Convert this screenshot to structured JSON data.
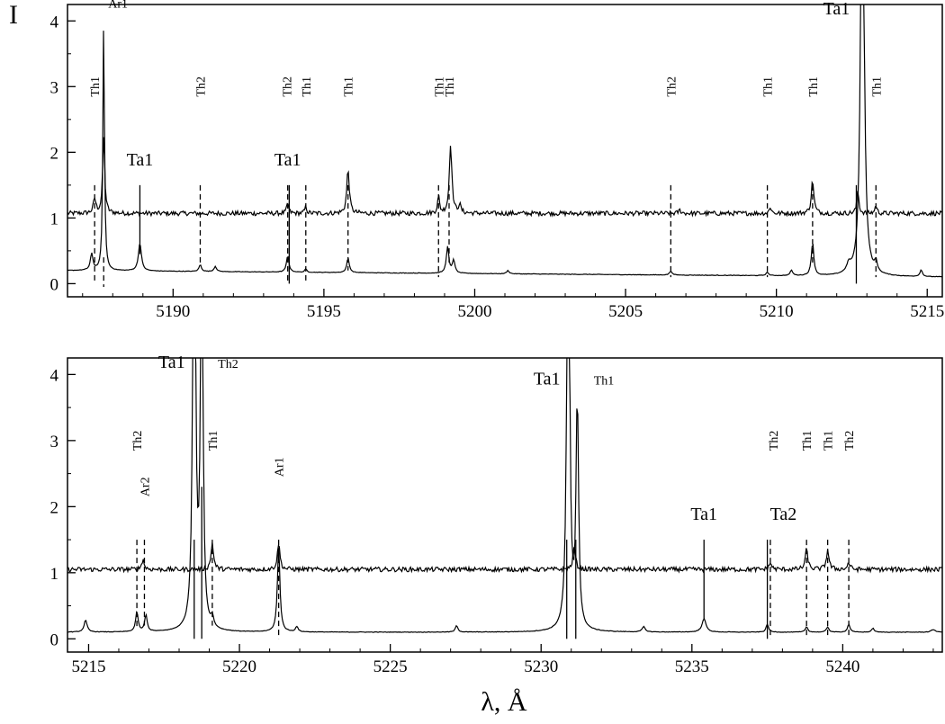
{
  "chart_data": {
    "type": "line",
    "axis_titles": {
      "y": "I",
      "x": "λ, Å"
    },
    "panels": [
      {
        "xlim": [
          5186.5,
          5215.5
        ],
        "ylim": [
          -0.2,
          4.25
        ],
        "xticks": [
          5190,
          5195,
          5200,
          5205,
          5210,
          5215
        ],
        "yticks": [
          0,
          1,
          2,
          3,
          4
        ],
        "series": [
          {
            "baseline": 1.07,
            "noise": 0.035,
            "peaks": [
              [
                5187.4,
                0.22,
                0.05
              ],
              [
                5187.7,
                1.2,
                0.04
              ],
              [
                5193.8,
                0.15,
                0.04
              ],
              [
                5194.4,
                0.1,
                0.04
              ],
              [
                5195.8,
                0.67,
                0.05
              ],
              [
                5198.8,
                0.25,
                0.04
              ],
              [
                5199.2,
                1.06,
                0.05
              ],
              [
                5199.5,
                0.12,
                0.05
              ],
              [
                5206.8,
                0.05,
                0.05
              ],
              [
                5209.8,
                0.1,
                0.04
              ],
              [
                5211.2,
                0.5,
                0.05
              ],
              [
                5212.7,
                0.35,
                0.04
              ],
              [
                5213.3,
                0.12,
                0.04
              ]
            ]
          },
          {
            "baseline": 0.2,
            "trend": -0.1,
            "noise": 0.004,
            "peaks": [
              [
                5187.3,
                0.25,
                0.05
              ],
              [
                5187.7,
                3.9,
                0.03
              ],
              [
                5188.9,
                0.42,
                0.06
              ],
              [
                5190.9,
                0.1,
                0.05
              ],
              [
                5191.4,
                0.08,
                0.05
              ],
              [
                5193.8,
                0.25,
                0.05
              ],
              [
                5194.4,
                0.05,
                0.04
              ],
              [
                5195.8,
                0.22,
                0.05
              ],
              [
                5199.1,
                0.4,
                0.05
              ],
              [
                5199.3,
                0.2,
                0.05
              ],
              [
                5201.1,
                0.05,
                0.05
              ],
              [
                5206.5,
                0.06,
                0.05
              ],
              [
                5209.7,
                0.05,
                0.05
              ],
              [
                5210.5,
                0.08,
                0.05
              ],
              [
                5211.2,
                0.5,
                0.05
              ],
              [
                5212.4,
                0.12,
                0.08
              ],
              [
                5212.85,
                8,
                0.06
              ],
              [
                5213.3,
                0.15,
                0.05
              ],
              [
                5214.8,
                0.1,
                0.05
              ]
            ]
          }
        ],
        "markers": [
          {
            "x": 5187.4,
            "top": 1.5,
            "bottom": 0.0,
            "style": "dashed",
            "label": "Th1",
            "label_y": 3.0,
            "size": "small",
            "rotate": true
          },
          {
            "x": 5187.7,
            "top": 0.4,
            "bottom": -0.05,
            "style": "dashed",
            "label": "Ar1",
            "label_y": 4.2,
            "size": "small",
            "rotate": false,
            "label_dx": 5
          },
          {
            "x": 5188.9,
            "top": 1.5,
            "bottom": 0.45,
            "style": "solid",
            "label": "Ta1",
            "label_y": 1.8,
            "size": "big",
            "rotate": false
          },
          {
            "x": 5190.9,
            "top": 1.5,
            "bottom": 0.3,
            "style": "dashed",
            "label": "Th2",
            "label_y": 3.0,
            "size": "small",
            "rotate": true
          },
          {
            "x": 5193.8,
            "top": 1.5,
            "bottom": 0.0,
            "style": "dashed",
            "label": "Ta1",
            "label_y": 1.8,
            "size": "big",
            "rotate": false
          },
          {
            "x": 5193.85,
            "top": 1.5,
            "bottom": 0.0,
            "style": "solid",
            "label": "Th2",
            "label_y": 3.0,
            "size": "small",
            "rotate": true,
            "label_dx": -3
          },
          {
            "x": 5194.4,
            "top": 1.5,
            "bottom": 0.0,
            "style": "dashed",
            "label": "Th1",
            "label_y": 3.0,
            "size": "small",
            "rotate": true
          },
          {
            "x": 5195.8,
            "top": 1.5,
            "bottom": 0.2,
            "style": "dashed",
            "label": "Th1",
            "label_y": 3.0,
            "size": "small",
            "rotate": true
          },
          {
            "x": 5198.8,
            "top": 1.5,
            "bottom": 0.1,
            "style": "dashed",
            "label": "Th1",
            "label_y": 3.0,
            "size": "small",
            "rotate": true
          },
          {
            "x": 5199.15,
            "top": 1.5,
            "bottom": 0.3,
            "style": "dashed",
            "label": "Th1",
            "label_y": 3.0,
            "size": "small",
            "rotate": true
          },
          {
            "x": 5206.5,
            "top": 1.5,
            "bottom": 0.1,
            "style": "dashed",
            "label": "Th2",
            "label_y": 3.0,
            "size": "small",
            "rotate": true
          },
          {
            "x": 5209.7,
            "top": 1.5,
            "bottom": 0.1,
            "style": "dashed",
            "label": "Th1",
            "label_y": 3.0,
            "size": "small",
            "rotate": true
          },
          {
            "x": 5211.2,
            "top": 1.5,
            "bottom": 0.3,
            "style": "dashed",
            "label": "Th1",
            "label_y": 3.0,
            "size": "small",
            "rotate": true
          },
          {
            "x": 5212.65,
            "top": 1.5,
            "bottom": 0.0,
            "style": "solid",
            "label": "Ta1",
            "label_y": 4.1,
            "size": "big",
            "rotate": false,
            "label_dx": -22
          },
          {
            "x": 5213.3,
            "top": 1.5,
            "bottom": 0.1,
            "style": "dashed",
            "label": "Th1",
            "label_y": 3.0,
            "size": "small",
            "rotate": true
          }
        ]
      },
      {
        "xlim": [
          5214.3,
          5243.3
        ],
        "ylim": [
          -0.2,
          4.25
        ],
        "xticks": [
          5215,
          5220,
          5225,
          5230,
          5235,
          5240
        ],
        "yticks": [
          0,
          1,
          2,
          3,
          4
        ],
        "series": [
          {
            "baseline": 1.05,
            "noise": 0.035,
            "peaks": [
              [
                5216.8,
                0.15,
                0.05
              ],
              [
                5219.1,
                0.4,
                0.05
              ],
              [
                5221.3,
                0.4,
                0.05
              ],
              [
                5231.1,
                0.35,
                0.05
              ],
              [
                5237.6,
                0.1,
                0.05
              ],
              [
                5238.8,
                0.3,
                0.05
              ],
              [
                5239.5,
                0.3,
                0.05
              ],
              [
                5240.2,
                0.1,
                0.05
              ]
            ]
          },
          {
            "baseline": 0.1,
            "noise": 0.004,
            "peaks": [
              [
                5214.9,
                0.18,
                0.06
              ],
              [
                5216.6,
                0.3,
                0.05
              ],
              [
                5216.9,
                0.25,
                0.05
              ],
              [
                5218.5,
                8,
                0.05
              ],
              [
                5218.75,
                8,
                0.04
              ],
              [
                5219.1,
                0.15,
                0.05
              ],
              [
                5221.3,
                1.3,
                0.05
              ],
              [
                5221.9,
                0.08,
                0.05
              ],
              [
                5227.2,
                0.1,
                0.05
              ],
              [
                5230.9,
                8,
                0.05
              ],
              [
                5231.2,
                3.45,
                0.05
              ],
              [
                5233.4,
                0.08,
                0.06
              ],
              [
                5235.4,
                0.2,
                0.08
              ],
              [
                5237.5,
                0.12,
                0.05
              ],
              [
                5238.8,
                0.08,
                0.05
              ],
              [
                5239.5,
                0.08,
                0.05
              ],
              [
                5240.2,
                0.12,
                0.05
              ],
              [
                5241.0,
                0.06,
                0.05
              ],
              [
                5243.0,
                0.04,
                0.08
              ]
            ]
          }
        ],
        "markers": [
          {
            "x": 5216.6,
            "top": 1.5,
            "bottom": 0.15,
            "style": "dashed",
            "label": "Th2",
            "label_y": 3.0,
            "size": "small",
            "rotate": true
          },
          {
            "x": 5216.85,
            "top": 1.5,
            "bottom": 0.2,
            "style": "dashed",
            "label": "Ar2",
            "label_y": 2.3,
            "size": "small",
            "rotate": true
          },
          {
            "x": 5218.5,
            "top": 1.5,
            "bottom": 0.0,
            "style": "solid",
            "label": "Ta1",
            "label_y": 4.1,
            "size": "big",
            "rotate": false,
            "label_dx": -25
          },
          {
            "x": 5218.75,
            "top": 2.3,
            "bottom": 0.0,
            "style": "solid",
            "label": "Th2",
            "label_y": 4.1,
            "size": "small",
            "rotate": false,
            "label_dx": 18
          },
          {
            "x": 5219.1,
            "top": 1.5,
            "bottom": 0.2,
            "style": "dashed",
            "label": "Th1",
            "label_y": 3.0,
            "size": "small",
            "rotate": true
          },
          {
            "x": 5221.3,
            "top": 1.5,
            "bottom": 0.0,
            "style": "dashed",
            "label": "Ar1",
            "label_y": 2.6,
            "size": "small",
            "rotate": true
          },
          {
            "x": 5230.85,
            "top": 1.5,
            "bottom": 0.0,
            "style": "solid",
            "label": "Ta1",
            "label_y": 3.85,
            "size": "big",
            "rotate": false,
            "label_dx": -22
          },
          {
            "x": 5231.15,
            "top": 1.5,
            "bottom": 0.0,
            "style": "solid",
            "label": "Th1",
            "label_y": 3.85,
            "size": "small",
            "rotate": false,
            "label_dx": 20
          },
          {
            "x": 5235.4,
            "top": 1.5,
            "bottom": 0.3,
            "style": "solid",
            "label": "Ta1",
            "label_y": 1.8,
            "size": "big",
            "rotate": false
          },
          {
            "x": 5237.5,
            "top": 1.5,
            "bottom": 0.0,
            "style": "solid",
            "label": "Ta2",
            "label_y": 1.8,
            "size": "big",
            "rotate": false,
            "label_dx": 3
          },
          {
            "x": 5237.6,
            "top": 1.5,
            "bottom": 0.0,
            "style": "dashed",
            "label": "Th2",
            "label_y": 3.0,
            "size": "small",
            "rotate": true,
            "label_dx": 3
          },
          {
            "x": 5238.8,
            "top": 1.5,
            "bottom": 0.0,
            "style": "dashed",
            "label": "Th1",
            "label_y": 3.0,
            "size": "small",
            "rotate": true
          },
          {
            "x": 5239.5,
            "top": 1.5,
            "bottom": 0.0,
            "style": "dashed",
            "label": "Th1",
            "label_y": 3.0,
            "size": "small",
            "rotate": true
          },
          {
            "x": 5240.2,
            "top": 1.5,
            "bottom": 0.0,
            "style": "dashed",
            "label": "Th2",
            "label_y": 3.0,
            "size": "small",
            "rotate": true
          }
        ]
      }
    ]
  }
}
